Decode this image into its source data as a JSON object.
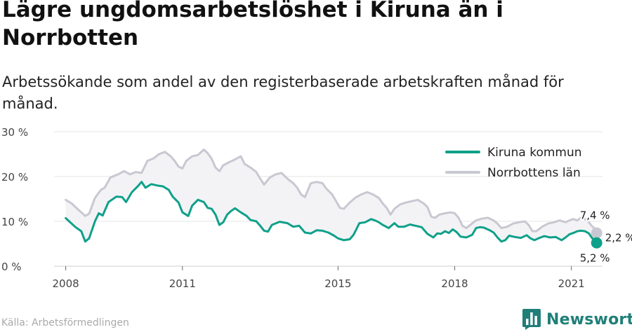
{
  "header": {
    "title": "Lägre ungdomsarbetslöshet i Kiruna än i Norrbotten",
    "subtitle": "Arbetssökande som andel av den registerbaserade arbetskraften månad för månad."
  },
  "footer": {
    "source": "Källa: Arbetsförmedlingen",
    "brand": "Newsworthy"
  },
  "colors": {
    "kiruna": "#0fa08a",
    "norrbotten": "#c8c8d2",
    "band": "#f3f3f5",
    "grid": "#e6e6e6",
    "brand": "#1f7f78"
  },
  "chart_data": {
    "type": "line",
    "title": "Lägre ungdomsarbetslöshet i Kiruna än i Norrbotten",
    "subtitle": "Arbetssökande som andel av den registerbaserade arbetskraften månad för månad.",
    "x_unit": "year",
    "xlim": [
      2007.7,
      2021.8
    ],
    "ylim": [
      0,
      30
    ],
    "y_ticks": [
      0,
      10,
      20,
      30
    ],
    "y_tick_labels": [
      "0 %",
      "10 %",
      "20 %",
      "30 %"
    ],
    "x_ticks": [
      2008,
      2011,
      2015,
      2018,
      2021
    ],
    "x_tick_labels": [
      "2008",
      "2011",
      "2015",
      "2018",
      "2021"
    ],
    "grid": true,
    "legend_position": "top-right",
    "band_between_series": true,
    "series": [
      {
        "name": "Kiruna kommun",
        "color": "#0fa08a",
        "end_label": "5,2 %",
        "points": [
          [
            2008.0,
            10.7
          ],
          [
            2008.25,
            8.7
          ],
          [
            2008.4,
            7.8
          ],
          [
            2008.5,
            5.5
          ],
          [
            2008.6,
            6.2
          ],
          [
            2008.75,
            10.0
          ],
          [
            2008.85,
            11.8
          ],
          [
            2008.95,
            11.3
          ],
          [
            2009.1,
            14.3
          ],
          [
            2009.3,
            15.5
          ],
          [
            2009.45,
            15.4
          ],
          [
            2009.55,
            14.3
          ],
          [
            2009.7,
            16.5
          ],
          [
            2009.85,
            17.8
          ],
          [
            2009.95,
            18.8
          ],
          [
            2010.05,
            17.5
          ],
          [
            2010.2,
            18.3
          ],
          [
            2010.35,
            18.0
          ],
          [
            2010.5,
            17.8
          ],
          [
            2010.65,
            17.0
          ],
          [
            2010.75,
            15.5
          ],
          [
            2010.9,
            14.2
          ],
          [
            2011.0,
            12.0
          ],
          [
            2011.15,
            11.2
          ],
          [
            2011.25,
            13.5
          ],
          [
            2011.4,
            14.8
          ],
          [
            2011.55,
            14.3
          ],
          [
            2011.65,
            13.0
          ],
          [
            2011.75,
            12.8
          ],
          [
            2011.85,
            11.5
          ],
          [
            2011.95,
            9.2
          ],
          [
            2012.05,
            9.8
          ],
          [
            2012.15,
            11.5
          ],
          [
            2012.25,
            12.3
          ],
          [
            2012.35,
            12.9
          ],
          [
            2012.5,
            12.0
          ],
          [
            2012.65,
            11.2
          ],
          [
            2012.75,
            10.3
          ],
          [
            2012.9,
            10.0
          ],
          [
            2013.0,
            9.0
          ],
          [
            2013.1,
            7.9
          ],
          [
            2013.2,
            7.7
          ],
          [
            2013.3,
            9.2
          ],
          [
            2013.5,
            9.9
          ],
          [
            2013.7,
            9.6
          ],
          [
            2013.85,
            8.8
          ],
          [
            2014.0,
            9.0
          ],
          [
            2014.15,
            7.5
          ],
          [
            2014.3,
            7.3
          ],
          [
            2014.45,
            8.0
          ],
          [
            2014.6,
            7.9
          ],
          [
            2014.75,
            7.5
          ],
          [
            2014.9,
            6.8
          ],
          [
            2015.0,
            6.2
          ],
          [
            2015.15,
            5.8
          ],
          [
            2015.3,
            6.0
          ],
          [
            2015.4,
            7.0
          ],
          [
            2015.55,
            9.6
          ],
          [
            2015.7,
            9.8
          ],
          [
            2015.85,
            10.5
          ],
          [
            2015.95,
            10.2
          ],
          [
            2016.05,
            9.8
          ],
          [
            2016.15,
            9.2
          ],
          [
            2016.3,
            8.5
          ],
          [
            2016.45,
            9.6
          ],
          [
            2016.55,
            8.8
          ],
          [
            2016.7,
            8.8
          ],
          [
            2016.85,
            9.3
          ],
          [
            2017.0,
            9.0
          ],
          [
            2017.15,
            8.7
          ],
          [
            2017.3,
            7.2
          ],
          [
            2017.45,
            6.4
          ],
          [
            2017.55,
            7.3
          ],
          [
            2017.65,
            7.2
          ],
          [
            2017.75,
            7.8
          ],
          [
            2017.85,
            7.4
          ],
          [
            2017.95,
            8.2
          ],
          [
            2018.05,
            7.6
          ],
          [
            2018.15,
            6.6
          ],
          [
            2018.3,
            6.4
          ],
          [
            2018.45,
            7.0
          ],
          [
            2018.55,
            8.5
          ],
          [
            2018.65,
            8.7
          ],
          [
            2018.75,
            8.6
          ],
          [
            2018.9,
            8.0
          ],
          [
            2019.0,
            7.5
          ],
          [
            2019.1,
            6.4
          ],
          [
            2019.2,
            5.5
          ],
          [
            2019.3,
            5.8
          ],
          [
            2019.4,
            6.8
          ],
          [
            2019.55,
            6.5
          ],
          [
            2019.7,
            6.3
          ],
          [
            2019.85,
            6.9
          ],
          [
            2019.95,
            6.2
          ],
          [
            2020.05,
            5.8
          ],
          [
            2020.15,
            6.2
          ],
          [
            2020.3,
            6.7
          ],
          [
            2020.45,
            6.4
          ],
          [
            2020.6,
            6.5
          ],
          [
            2020.75,
            5.8
          ],
          [
            2020.85,
            6.4
          ],
          [
            2020.95,
            7.1
          ],
          [
            2021.05,
            7.4
          ],
          [
            2021.15,
            7.8
          ],
          [
            2021.25,
            7.9
          ],
          [
            2021.35,
            7.8
          ],
          [
            2021.45,
            7.3
          ],
          [
            2021.52,
            6.4
          ],
          [
            2021.58,
            5.8
          ],
          [
            2021.65,
            5.2
          ]
        ]
      },
      {
        "name": "Norrbottens län",
        "color": "#c8c8d2",
        "end_label": "7,4 %",
        "points": [
          [
            2008.0,
            14.8
          ],
          [
            2008.15,
            14.0
          ],
          [
            2008.3,
            12.8
          ],
          [
            2008.4,
            12.0
          ],
          [
            2008.5,
            11.2
          ],
          [
            2008.6,
            11.7
          ],
          [
            2008.75,
            15.2
          ],
          [
            2008.9,
            17.0
          ],
          [
            2009.0,
            17.5
          ],
          [
            2009.15,
            19.8
          ],
          [
            2009.35,
            20.5
          ],
          [
            2009.5,
            21.2
          ],
          [
            2009.65,
            20.5
          ],
          [
            2009.8,
            21.0
          ],
          [
            2009.95,
            20.8
          ],
          [
            2010.1,
            23.5
          ],
          [
            2010.25,
            24.0
          ],
          [
            2010.4,
            25.0
          ],
          [
            2010.55,
            25.5
          ],
          [
            2010.7,
            24.5
          ],
          [
            2010.8,
            23.5
          ],
          [
            2010.9,
            22.2
          ],
          [
            2011.0,
            21.8
          ],
          [
            2011.1,
            23.5
          ],
          [
            2011.25,
            24.5
          ],
          [
            2011.4,
            24.8
          ],
          [
            2011.55,
            26.0
          ],
          [
            2011.65,
            25.2
          ],
          [
            2011.75,
            24.0
          ],
          [
            2011.85,
            22.0
          ],
          [
            2011.95,
            21.2
          ],
          [
            2012.05,
            22.5
          ],
          [
            2012.2,
            23.2
          ],
          [
            2012.35,
            23.8
          ],
          [
            2012.5,
            24.5
          ],
          [
            2012.6,
            22.8
          ],
          [
            2012.75,
            22.0
          ],
          [
            2012.9,
            21.0
          ],
          [
            2013.0,
            19.5
          ],
          [
            2013.1,
            18.2
          ],
          [
            2013.25,
            19.8
          ],
          [
            2013.4,
            20.5
          ],
          [
            2013.55,
            20.8
          ],
          [
            2013.7,
            19.5
          ],
          [
            2013.85,
            18.5
          ],
          [
            2013.95,
            17.5
          ],
          [
            2014.05,
            16.0
          ],
          [
            2014.15,
            15.4
          ],
          [
            2014.3,
            18.5
          ],
          [
            2014.45,
            18.8
          ],
          [
            2014.6,
            18.5
          ],
          [
            2014.7,
            17.3
          ],
          [
            2014.85,
            16.0
          ],
          [
            2014.95,
            14.5
          ],
          [
            2015.05,
            13.0
          ],
          [
            2015.15,
            12.8
          ],
          [
            2015.3,
            14.2
          ],
          [
            2015.45,
            15.3
          ],
          [
            2015.6,
            16.0
          ],
          [
            2015.75,
            16.5
          ],
          [
            2015.9,
            16.0
          ],
          [
            2016.05,
            15.2
          ],
          [
            2016.15,
            14.0
          ],
          [
            2016.25,
            13.0
          ],
          [
            2016.35,
            11.5
          ],
          [
            2016.45,
            12.8
          ],
          [
            2016.6,
            13.8
          ],
          [
            2016.75,
            14.2
          ],
          [
            2016.9,
            14.5
          ],
          [
            2017.05,
            14.8
          ],
          [
            2017.2,
            14.0
          ],
          [
            2017.3,
            13.2
          ],
          [
            2017.4,
            11.0
          ],
          [
            2017.5,
            10.8
          ],
          [
            2017.6,
            11.5
          ],
          [
            2017.75,
            11.8
          ],
          [
            2017.9,
            12.0
          ],
          [
            2018.0,
            11.8
          ],
          [
            2018.1,
            10.8
          ],
          [
            2018.2,
            9.0
          ],
          [
            2018.3,
            8.5
          ],
          [
            2018.4,
            9.2
          ],
          [
            2018.55,
            10.2
          ],
          [
            2018.7,
            10.6
          ],
          [
            2018.85,
            10.8
          ],
          [
            2019.0,
            10.2
          ],
          [
            2019.1,
            9.5
          ],
          [
            2019.2,
            8.5
          ],
          [
            2019.35,
            8.8
          ],
          [
            2019.5,
            9.5
          ],
          [
            2019.65,
            9.8
          ],
          [
            2019.8,
            10.0
          ],
          [
            2019.9,
            9.2
          ],
          [
            2020.0,
            7.8
          ],
          [
            2020.1,
            7.8
          ],
          [
            2020.25,
            8.8
          ],
          [
            2020.4,
            9.5
          ],
          [
            2020.55,
            9.8
          ],
          [
            2020.7,
            10.2
          ],
          [
            2020.85,
            9.8
          ],
          [
            2020.95,
            10.2
          ],
          [
            2021.05,
            10.5
          ],
          [
            2021.15,
            10.2
          ],
          [
            2021.25,
            10.8
          ],
          [
            2021.35,
            10.5
          ],
          [
            2021.45,
            9.8
          ],
          [
            2021.52,
            9.0
          ],
          [
            2021.6,
            8.4
          ],
          [
            2021.65,
            7.4
          ]
        ]
      }
    ],
    "annotations": [
      {
        "text": "2,2 %",
        "meaning": "difference between series at last month"
      }
    ]
  }
}
